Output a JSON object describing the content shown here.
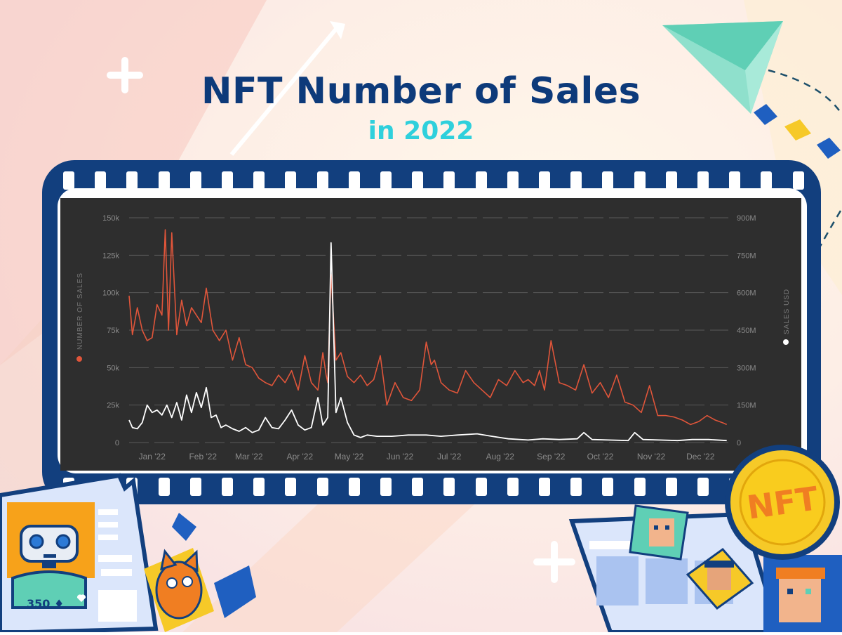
{
  "header": {
    "title": "NFT Number of Sales",
    "subtitle": "in 2022"
  },
  "colors": {
    "title": "#0d3a7a",
    "subtitle": "#2fd0dc",
    "film": "#123f7e",
    "chart_bg": "#2e2e2e",
    "sales_line": "#e0553a",
    "usd_line": "#ffffff"
  },
  "decor": {
    "coin_label": "NFT",
    "price_label": "350 ♦"
  },
  "chart_data": {
    "type": "line",
    "title": "",
    "ylabel": "NUMBER OF SALES",
    "y2label": "SALES USD",
    "ylim": [
      0,
      150000
    ],
    "y2lim": [
      0,
      900000000
    ],
    "y_ticks": [
      "0",
      "25k",
      "50k",
      "75k",
      "100k",
      "125k",
      "150k"
    ],
    "y2_ticks": [
      "0",
      "150M",
      "300M",
      "450M",
      "600M",
      "750M",
      "900M"
    ],
    "x_ticks": [
      "Jan '22",
      "Feb '22",
      "Mar '22",
      "Apr '22",
      "May '22",
      "Jun '22",
      "Jul '22",
      "Aug '22",
      "Sep '22",
      "Oct '22",
      "Nov '22",
      "Dec '22"
    ],
    "grid": "horizontal",
    "series": [
      {
        "name": "NUMBER OF SALES",
        "axis": "left",
        "color": "#e0553a",
        "x": [
          "2022-01-01",
          "2022-01-03",
          "2022-01-06",
          "2022-01-09",
          "2022-01-12",
          "2022-01-15",
          "2022-01-18",
          "2022-01-21",
          "2022-01-23",
          "2022-01-25",
          "2022-01-27",
          "2022-01-30",
          "2022-02-02",
          "2022-02-05",
          "2022-02-08",
          "2022-02-11",
          "2022-02-14",
          "2022-02-17",
          "2022-02-21",
          "2022-02-25",
          "2022-03-01",
          "2022-03-05",
          "2022-03-09",
          "2022-03-13",
          "2022-03-17",
          "2022-03-21",
          "2022-03-25",
          "2022-03-29",
          "2022-04-02",
          "2022-04-06",
          "2022-04-10",
          "2022-04-14",
          "2022-04-18",
          "2022-04-22",
          "2022-04-26",
          "2022-04-29",
          "2022-05-01",
          "2022-05-02",
          "2022-05-04",
          "2022-05-07",
          "2022-05-10",
          "2022-05-14",
          "2022-05-18",
          "2022-05-22",
          "2022-05-26",
          "2022-05-30",
          "2022-06-03",
          "2022-06-07",
          "2022-06-12",
          "2022-06-17",
          "2022-06-22",
          "2022-06-27",
          "2022-07-01",
          "2022-07-04",
          "2022-07-06",
          "2022-07-10",
          "2022-07-15",
          "2022-07-20",
          "2022-07-25",
          "2022-07-30",
          "2022-08-04",
          "2022-08-09",
          "2022-08-14",
          "2022-08-19",
          "2022-08-24",
          "2022-08-29",
          "2022-09-01",
          "2022-09-05",
          "2022-09-08",
          "2022-09-11",
          "2022-09-15",
          "2022-09-20",
          "2022-09-25",
          "2022-09-30",
          "2022-10-05",
          "2022-10-10",
          "2022-10-15",
          "2022-10-20",
          "2022-10-25",
          "2022-10-30",
          "2022-11-04",
          "2022-11-09",
          "2022-11-14",
          "2022-11-19",
          "2022-11-24",
          "2022-11-29",
          "2022-12-04",
          "2022-12-09",
          "2022-12-14",
          "2022-12-19",
          "2022-12-24",
          "2022-12-29",
          "2022-12-31"
        ],
        "values": [
          98000,
          72000,
          90000,
          75000,
          68000,
          70000,
          92000,
          85000,
          142000,
          75000,
          140000,
          72000,
          95000,
          78000,
          90000,
          85000,
          80000,
          103000,
          75000,
          68000,
          75000,
          55000,
          70000,
          52000,
          50000,
          43000,
          40000,
          38000,
          45000,
          40000,
          48000,
          35000,
          58000,
          40000,
          35000,
          60000,
          45000,
          40000,
          112000,
          55000,
          60000,
          44000,
          40000,
          45000,
          38000,
          42000,
          58000,
          25000,
          40000,
          30000,
          28000,
          35000,
          67000,
          52000,
          55000,
          40000,
          35000,
          33000,
          48000,
          40000,
          35000,
          30000,
          42000,
          38000,
          48000,
          40000,
          42000,
          38000,
          48000,
          35000,
          68000,
          40000,
          38000,
          35000,
          52000,
          33000,
          40000,
          30000,
          45000,
          27000,
          25000,
          20000,
          38000,
          18000,
          18000,
          17000,
          15000,
          12000,
          14000,
          18000,
          15000,
          13000,
          12000
        ]
      },
      {
        "name": "SALES USD",
        "axis": "right",
        "color": "#ffffff",
        "x": [
          "2022-01-01",
          "2022-01-03",
          "2022-01-06",
          "2022-01-09",
          "2022-01-12",
          "2022-01-15",
          "2022-01-18",
          "2022-01-21",
          "2022-01-24",
          "2022-01-27",
          "2022-01-30",
          "2022-02-02",
          "2022-02-05",
          "2022-02-08",
          "2022-02-11",
          "2022-02-14",
          "2022-02-17",
          "2022-02-20",
          "2022-02-23",
          "2022-02-26",
          "2022-03-01",
          "2022-03-05",
          "2022-03-09",
          "2022-03-13",
          "2022-03-17",
          "2022-03-21",
          "2022-03-25",
          "2022-03-29",
          "2022-04-02",
          "2022-04-06",
          "2022-04-10",
          "2022-04-14",
          "2022-04-18",
          "2022-04-22",
          "2022-04-26",
          "2022-04-29",
          "2022-05-01",
          "2022-05-02",
          "2022-05-04",
          "2022-05-07",
          "2022-05-10",
          "2022-05-14",
          "2022-05-18",
          "2022-05-22",
          "2022-05-26",
          "2022-06-01",
          "2022-06-10",
          "2022-06-20",
          "2022-07-01",
          "2022-07-10",
          "2022-07-20",
          "2022-08-01",
          "2022-08-10",
          "2022-08-20",
          "2022-09-01",
          "2022-09-10",
          "2022-09-20",
          "2022-10-01",
          "2022-10-05",
          "2022-10-10",
          "2022-10-20",
          "2022-11-01",
          "2022-11-05",
          "2022-11-10",
          "2022-11-20",
          "2022-12-01",
          "2022-12-10",
          "2022-12-20",
          "2022-12-31"
        ],
        "values": [
          90000000,
          60000000,
          55000000,
          80000000,
          150000000,
          120000000,
          130000000,
          110000000,
          150000000,
          100000000,
          160000000,
          90000000,
          190000000,
          120000000,
          200000000,
          140000000,
          220000000,
          100000000,
          110000000,
          60000000,
          70000000,
          55000000,
          45000000,
          60000000,
          40000000,
          50000000,
          100000000,
          60000000,
          55000000,
          90000000,
          130000000,
          70000000,
          50000000,
          60000000,
          180000000,
          70000000,
          90000000,
          100000000,
          800000000,
          120000000,
          180000000,
          80000000,
          30000000,
          20000000,
          30000000,
          25000000,
          25000000,
          30000000,
          30000000,
          25000000,
          30000000,
          35000000,
          25000000,
          15000000,
          10000000,
          15000000,
          12000000,
          15000000,
          40000000,
          12000000,
          10000000,
          8000000,
          40000000,
          12000000,
          10000000,
          8000000,
          12000000,
          12000000,
          8000000
        ]
      }
    ]
  }
}
